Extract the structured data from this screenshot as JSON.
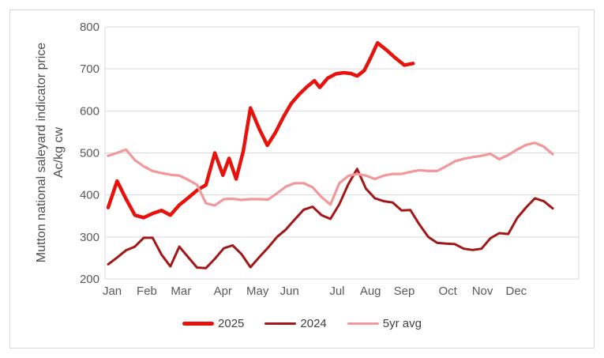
{
  "chart_data": {
    "type": "line",
    "title": "",
    "x_unit": "week_of_year",
    "grid": true,
    "legend_position": "bottom",
    "colors": {
      "background": "#ffffff",
      "frame_border": "#d9d9d9",
      "gridline": "#d9d9d9",
      "tick_text": "#595959",
      "axis_title_text": "#4d4d4d",
      "legend_text": "#404040",
      "series_2025": "#e8120d",
      "series_2024": "#a21717",
      "series_5yr": "#f2989a"
    },
    "y_axis": {
      "label_line1": "Mutton national saleyard indicator price",
      "label_line2": "Ac/kg cw",
      "ticks": [
        200,
        300,
        400,
        500,
        600,
        700,
        800
      ],
      "ylim": [
        200,
        800
      ]
    },
    "x_axis": {
      "months": [
        {
          "label": "Jan",
          "week": 0.45
        },
        {
          "label": "Feb",
          "week": 4.35
        },
        {
          "label": "Mar",
          "week": 8.2
        },
        {
          "label": "Apr",
          "week": 12.9
        },
        {
          "label": "May",
          "week": 16.8
        },
        {
          "label": "Jun",
          "week": 20.4
        },
        {
          "label": "Jul",
          "week": 25.75
        },
        {
          "label": "Aug",
          "week": 29.5
        },
        {
          "label": "Sep",
          "week": 33.3
        },
        {
          "label": "Oct",
          "week": 38.2
        },
        {
          "label": "Nov",
          "week": 42.1
        },
        {
          "label": "Dec",
          "week": 45.9
        }
      ]
    },
    "series": [
      {
        "name": "2025",
        "color": "#e8120d",
        "width": 4.5,
        "points": [
          [
            0,
            370
          ],
          [
            1,
            433
          ],
          [
            2,
            391
          ],
          [
            3,
            352
          ],
          [
            4,
            346
          ],
          [
            5,
            356
          ],
          [
            6,
            363
          ],
          [
            7,
            352
          ],
          [
            8,
            376
          ],
          [
            9,
            393
          ],
          [
            10,
            411
          ],
          [
            11,
            424
          ],
          [
            12,
            500
          ],
          [
            12.9,
            447
          ],
          [
            13.6,
            487
          ],
          [
            14.4,
            438
          ],
          [
            15.2,
            505
          ],
          [
            16,
            607
          ],
          [
            17,
            557
          ],
          [
            17.9,
            518
          ],
          [
            18.8,
            548
          ],
          [
            19.7,
            585
          ],
          [
            20.6,
            618
          ],
          [
            21.5,
            640
          ],
          [
            22.4,
            658
          ],
          [
            23.2,
            672
          ],
          [
            23.8,
            656
          ],
          [
            24.7,
            678
          ],
          [
            25.6,
            688
          ],
          [
            26.5,
            691
          ],
          [
            27.3,
            689
          ],
          [
            28,
            683
          ],
          [
            28.8,
            696
          ],
          [
            29.6,
            730
          ],
          [
            30.3,
            762
          ],
          [
            31.3,
            745
          ],
          [
            32.3,
            726
          ],
          [
            33.3,
            709
          ],
          [
            34.3,
            713
          ]
        ]
      },
      {
        "name": "2024",
        "color": "#a21717",
        "width": 3,
        "points": [
          [
            0,
            235
          ],
          [
            1,
            251
          ],
          [
            2,
            268
          ],
          [
            3,
            277
          ],
          [
            4,
            298
          ],
          [
            5,
            298
          ],
          [
            6,
            258
          ],
          [
            7,
            230
          ],
          [
            8,
            277
          ],
          [
            9,
            252
          ],
          [
            10,
            227
          ],
          [
            11,
            226
          ],
          [
            12,
            248
          ],
          [
            13,
            273
          ],
          [
            14,
            280
          ],
          [
            15,
            259
          ],
          [
            16,
            228
          ],
          [
            17,
            252
          ],
          [
            18,
            275
          ],
          [
            19,
            300
          ],
          [
            20,
            318
          ],
          [
            21,
            342
          ],
          [
            22,
            365
          ],
          [
            23,
            372
          ],
          [
            24,
            352
          ],
          [
            25,
            343
          ],
          [
            26,
            378
          ],
          [
            27,
            425
          ],
          [
            28,
            462
          ],
          [
            29,
            415
          ],
          [
            30,
            392
          ],
          [
            31,
            385
          ],
          [
            32,
            382
          ],
          [
            33,
            363
          ],
          [
            34,
            364
          ],
          [
            35,
            330
          ],
          [
            36,
            300
          ],
          [
            37,
            286
          ],
          [
            38,
            284
          ],
          [
            39,
            283
          ],
          [
            40,
            272
          ],
          [
            41,
            269
          ],
          [
            42,
            272
          ],
          [
            43,
            297
          ],
          [
            44,
            309
          ],
          [
            45,
            307
          ],
          [
            46,
            345
          ],
          [
            47,
            370
          ],
          [
            48,
            392
          ],
          [
            49,
            385
          ],
          [
            50,
            368
          ]
        ]
      },
      {
        "name": "5yr avg",
        "color": "#f2989a",
        "width": 3.2,
        "points": [
          [
            0,
            493
          ],
          [
            1,
            500
          ],
          [
            2,
            508
          ],
          [
            3,
            483
          ],
          [
            4,
            468
          ],
          [
            5,
            457
          ],
          [
            6,
            452
          ],
          [
            7,
            448
          ],
          [
            8,
            446
          ],
          [
            9,
            436
          ],
          [
            10,
            424
          ],
          [
            11,
            380
          ],
          [
            12,
            375
          ],
          [
            13,
            390
          ],
          [
            14,
            391
          ],
          [
            15,
            388
          ],
          [
            16,
            390
          ],
          [
            17,
            390
          ],
          [
            18,
            389
          ],
          [
            19,
            404
          ],
          [
            20,
            420
          ],
          [
            21,
            428
          ],
          [
            22,
            428
          ],
          [
            23,
            418
          ],
          [
            24,
            395
          ],
          [
            25,
            377
          ],
          [
            26,
            428
          ],
          [
            27,
            445
          ],
          [
            28,
            450
          ],
          [
            29,
            446
          ],
          [
            30,
            438
          ],
          [
            31,
            446
          ],
          [
            32,
            450
          ],
          [
            33,
            450
          ],
          [
            34,
            455
          ],
          [
            35,
            459
          ],
          [
            36,
            457
          ],
          [
            37,
            457
          ],
          [
            38,
            468
          ],
          [
            39,
            480
          ],
          [
            40,
            486
          ],
          [
            41,
            490
          ],
          [
            42,
            493
          ],
          [
            43,
            498
          ],
          [
            44,
            485
          ],
          [
            45,
            495
          ],
          [
            46,
            508
          ],
          [
            47,
            519
          ],
          [
            48,
            524
          ],
          [
            49,
            515
          ],
          [
            50,
            497
          ]
        ]
      }
    ]
  }
}
